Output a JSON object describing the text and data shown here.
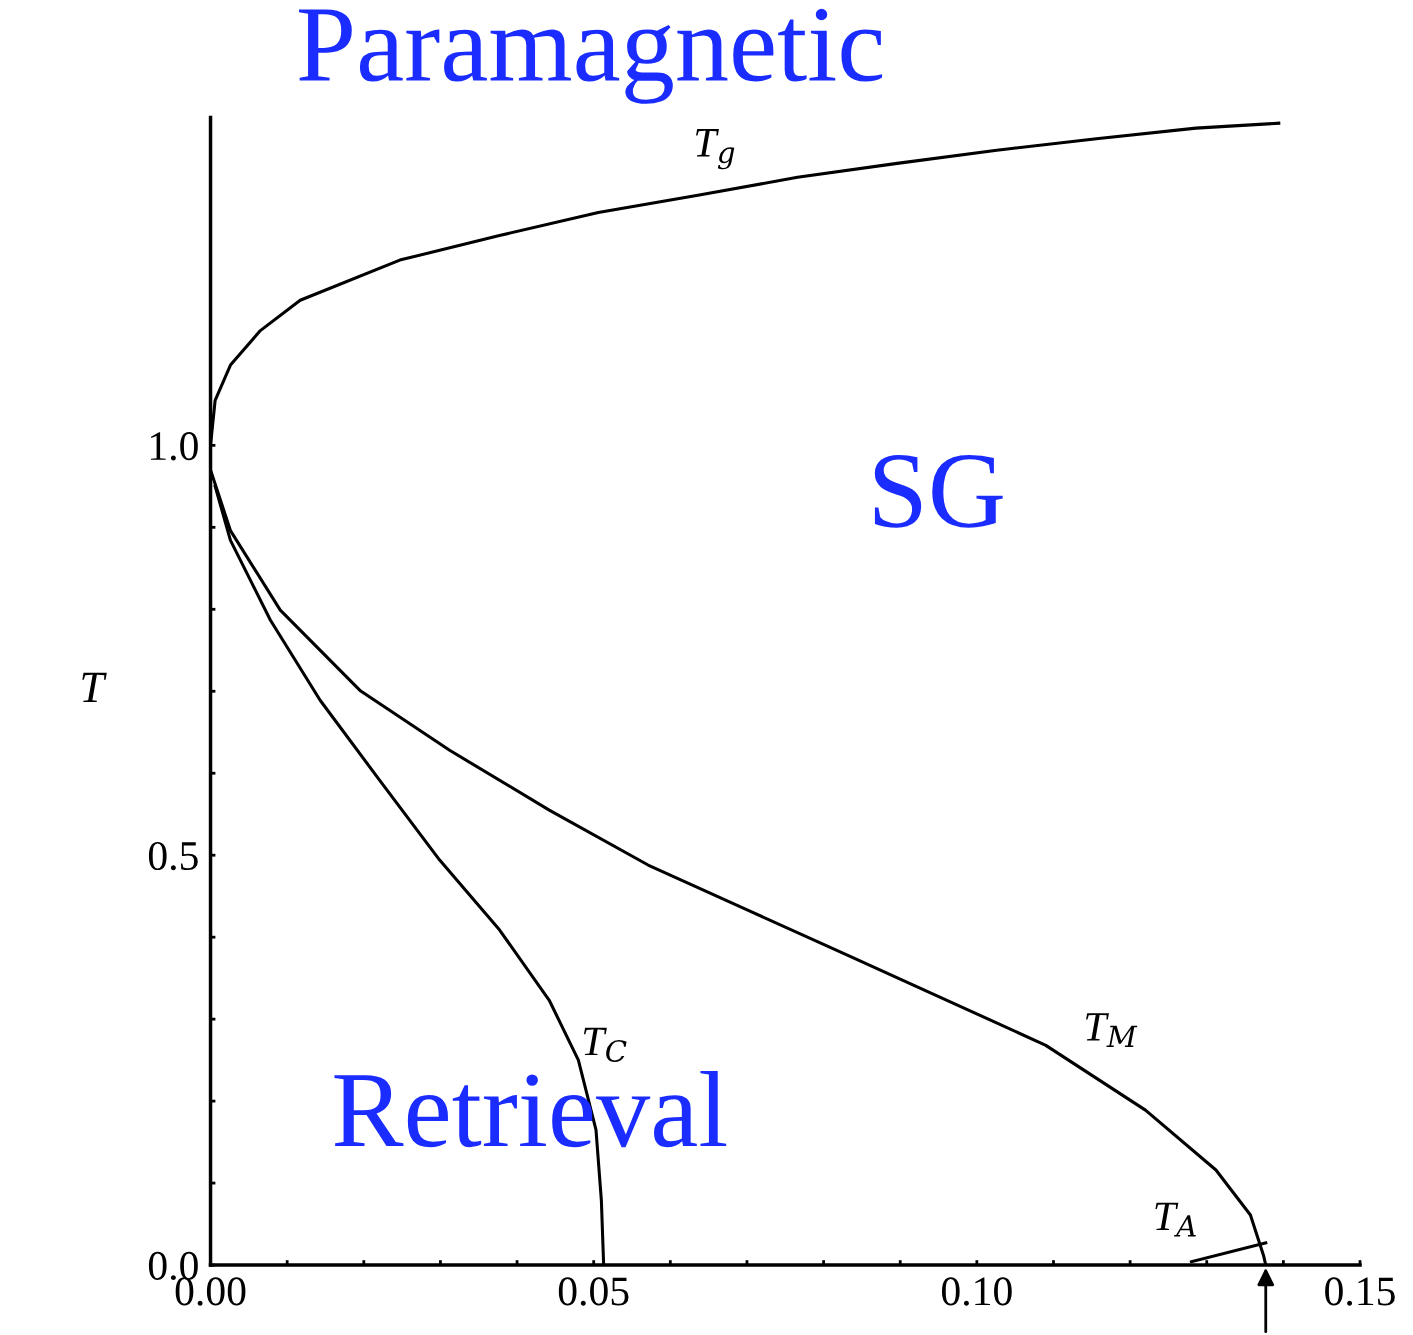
{
  "chart_data": {
    "type": "line",
    "ylabel": "T",
    "xlim": [
      0,
      0.15
    ],
    "ylim": [
      0,
      1.4
    ],
    "xticks": [
      {
        "value": 0,
        "label": "0.00"
      },
      {
        "value": 0.01,
        "label": null
      },
      {
        "value": 0.02,
        "label": null
      },
      {
        "value": 0.03,
        "label": null
      },
      {
        "value": 0.04,
        "label": null
      },
      0.05,
      {
        "value": 0.06,
        "label": null
      },
      {
        "value": 0.07,
        "label": null
      },
      {
        "value": 0.08,
        "label": null
      },
      {
        "value": 0.09,
        "label": null
      },
      {
        "value": 0.1,
        "label": "0.10"
      },
      {
        "value": 0.11,
        "label": null
      },
      {
        "value": 0.12,
        "label": null
      },
      {
        "value": 0.13,
        "label": null
      },
      {
        "value": 0.14,
        "label": null
      },
      0.15
    ],
    "yticks": [
      {
        "value": 0,
        "label": "0.0"
      },
      {
        "value": 0.1,
        "label": null
      },
      {
        "value": 0.2,
        "label": null
      },
      {
        "value": 0.3,
        "label": null
      },
      {
        "value": 0.4,
        "label": null
      },
      0.5,
      {
        "value": 0.6,
        "label": null
      },
      {
        "value": 0.7,
        "label": null
      },
      {
        "value": 0.8,
        "label": null
      },
      {
        "value": 0.9,
        "label": null
      },
      {
        "value": 1.0,
        "label": "1.0"
      }
    ],
    "grid": false,
    "legend": false,
    "marker": "none",
    "line_style": "solid",
    "series": [
      {
        "color": "#000000",
        "x": [
          0,
          0.0006,
          0.0026,
          0.0065,
          0.0117,
          0.0247,
          0.0377,
          0.0506,
          0.0636,
          0.0766,
          0.0896,
          0.1026,
          0.1156,
          0.1286,
          0.1394
        ],
        "values": [
          1.0,
          1.055,
          1.098,
          1.14,
          1.177,
          1.226,
          1.256,
          1.284,
          1.305,
          1.327,
          1.344,
          1.36,
          1.374,
          1.387,
          1.393
        ]
      },
      {
        "color": "#000000",
        "x": [
          0,
          0.0026,
          0.0091,
          0.0195,
          0.0312,
          0.0442,
          0.0571,
          0.0701,
          0.0831,
          0.0961,
          0.109,
          0.122,
          0.1312,
          0.1357,
          0.1374,
          0.1377
        ],
        "values": [
          0.97,
          0.896,
          0.799,
          0.701,
          0.628,
          0.555,
          0.488,
          0.433,
          0.378,
          0.323,
          0.268,
          0.189,
          0.116,
          0.061,
          0.012,
          0
        ]
      },
      {
        "color": "#000000",
        "x": [
          0.0006,
          0.0026,
          0.0078,
          0.0143,
          0.0221,
          0.0299,
          0.0377,
          0.0442,
          0.048,
          0.0503,
          0.051,
          0.0513
        ],
        "values": [
          0.95,
          0.884,
          0.787,
          0.689,
          0.591,
          0.494,
          0.409,
          0.323,
          0.25,
          0.165,
          0.079,
          0
        ]
      },
      {
        "color": "#000000",
        "x": [
          0.128,
          0.1377
        ],
        "values": [
          0.004,
          0.027
        ]
      }
    ],
    "annotations": [
      "T$_{g}$",
      "T$_{M}$",
      "T$_{C}$",
      "T$_{A}$",
      "Paramagnetic",
      "SG",
      "Retrieval"
    ]
  }
}
